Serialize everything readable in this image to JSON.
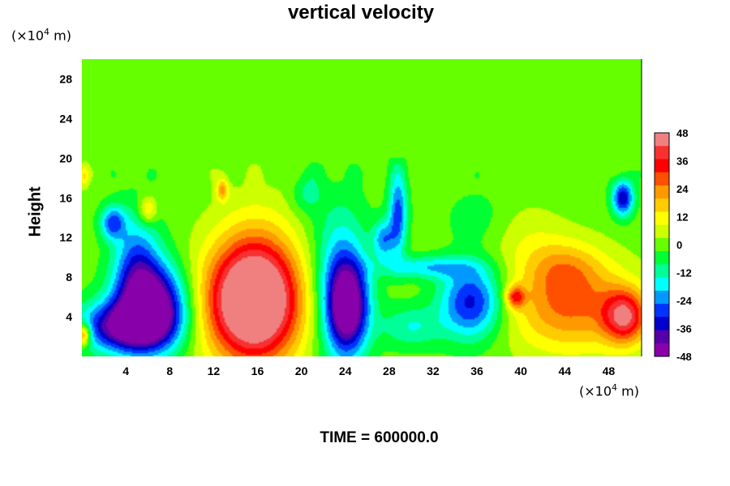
{
  "title": "vertical velocity",
  "y_unit_prefix": "(×10",
  "y_unit_exp": "4",
  "y_unit_suffix": " m)",
  "x_unit_prefix": "(×10",
  "x_unit_exp": "4",
  "x_unit_suffix": " m)",
  "y_label": "Height",
  "time_label": "TIME = 600000.0",
  "chart_data": {
    "type": "heatmap",
    "title": "vertical velocity",
    "xlabel": "(×10^4 m)",
    "ylabel": "Height",
    "xlim": [
      0,
      51
    ],
    "ylim": [
      0,
      30
    ],
    "x_ticks": [
      4,
      8,
      12,
      16,
      20,
      24,
      28,
      32,
      36,
      40,
      44,
      48
    ],
    "y_ticks": [
      4,
      8,
      12,
      16,
      20,
      24,
      28
    ],
    "colorbar": {
      "range": [
        -48,
        48
      ],
      "ticks": [
        48,
        36,
        24,
        12,
        0,
        -12,
        -24,
        -36,
        -48
      ],
      "colors": [
        "#f08080",
        "#f83030",
        "#ff0000",
        "#ff5000",
        "#ff9900",
        "#ffcc00",
        "#ffff00",
        "#ccff00",
        "#66ff00",
        "#00ff33",
        "#00ff99",
        "#00ffff",
        "#0099ff",
        "#0033ff",
        "#0000cc",
        "#5500aa",
        "#8800aa"
      ]
    },
    "field_background": 0,
    "features": [
      {
        "x": 15.5,
        "y": 5.5,
        "sx": 3.2,
        "sy": 4.2,
        "value": 55
      },
      {
        "x": 16.0,
        "y": 7.0,
        "sx": 2.5,
        "sy": 5.5,
        "value": 15
      },
      {
        "x": 6.5,
        "y": 5.0,
        "sx": 2.2,
        "sy": 3.0,
        "value": -50
      },
      {
        "x": 3.5,
        "y": 3.0,
        "sx": 2.8,
        "sy": 1.8,
        "value": -38
      },
      {
        "x": 5.0,
        "y": 9.0,
        "sx": 1.5,
        "sy": 4.0,
        "value": -24
      },
      {
        "x": 2.8,
        "y": 13.5,
        "sx": 0.8,
        "sy": 1.2,
        "value": -26
      },
      {
        "x": 24.2,
        "y": 5.0,
        "sx": 1.3,
        "sy": 3.2,
        "value": -44
      },
      {
        "x": 23.5,
        "y": 7.5,
        "sx": 1.8,
        "sy": 5.5,
        "value": -22
      },
      {
        "x": 35.5,
        "y": 5.5,
        "sx": 2.0,
        "sy": 2.6,
        "value": -34
      },
      {
        "x": 28.8,
        "y": 14.5,
        "sx": 0.6,
        "sy": 3.0,
        "value": -28
      },
      {
        "x": 27.5,
        "y": 11.8,
        "sx": 0.7,
        "sy": 1.4,
        "value": -22
      },
      {
        "x": 31.5,
        "y": 9.0,
        "sx": 3.0,
        "sy": 0.8,
        "value": -18
      },
      {
        "x": 49.3,
        "y": 16.0,
        "sx": 0.7,
        "sy": 1.3,
        "value": -36
      },
      {
        "x": 44.5,
        "y": 5.0,
        "sx": 4.0,
        "sy": 3.2,
        "value": 26
      },
      {
        "x": 49.5,
        "y": 4.0,
        "sx": 1.4,
        "sy": 1.9,
        "value": 36
      },
      {
        "x": 44.0,
        "y": 9.0,
        "sx": 2.5,
        "sy": 2.0,
        "value": 14
      },
      {
        "x": 39.5,
        "y": 6.0,
        "sx": 0.6,
        "sy": 0.8,
        "value": 28
      },
      {
        "x": 6.0,
        "y": 14.8,
        "sx": 0.6,
        "sy": 1.0,
        "value": 18
      },
      {
        "x": 12.8,
        "y": 16.8,
        "sx": 0.4,
        "sy": 0.8,
        "value": 20
      },
      {
        "x": 0.2,
        "y": 18.2,
        "sx": 0.3,
        "sy": 0.8,
        "value": 14
      },
      {
        "x": 0.1,
        "y": 2.2,
        "sx": 0.5,
        "sy": 0.8,
        "value": 34
      },
      {
        "x": 20.5,
        "y": 16.5,
        "sx": 1.0,
        "sy": 1.5,
        "value": -10
      },
      {
        "x": 30.0,
        "y": 3.0,
        "sx": 2.0,
        "sy": 1.5,
        "value": -14
      },
      {
        "x": 40.5,
        "y": 12.0,
        "sx": 2.5,
        "sy": 2.5,
        "value": 6
      },
      {
        "x": 36.0,
        "y": 14.0,
        "sx": 2.0,
        "sy": 2.0,
        "value": -6
      }
    ]
  }
}
